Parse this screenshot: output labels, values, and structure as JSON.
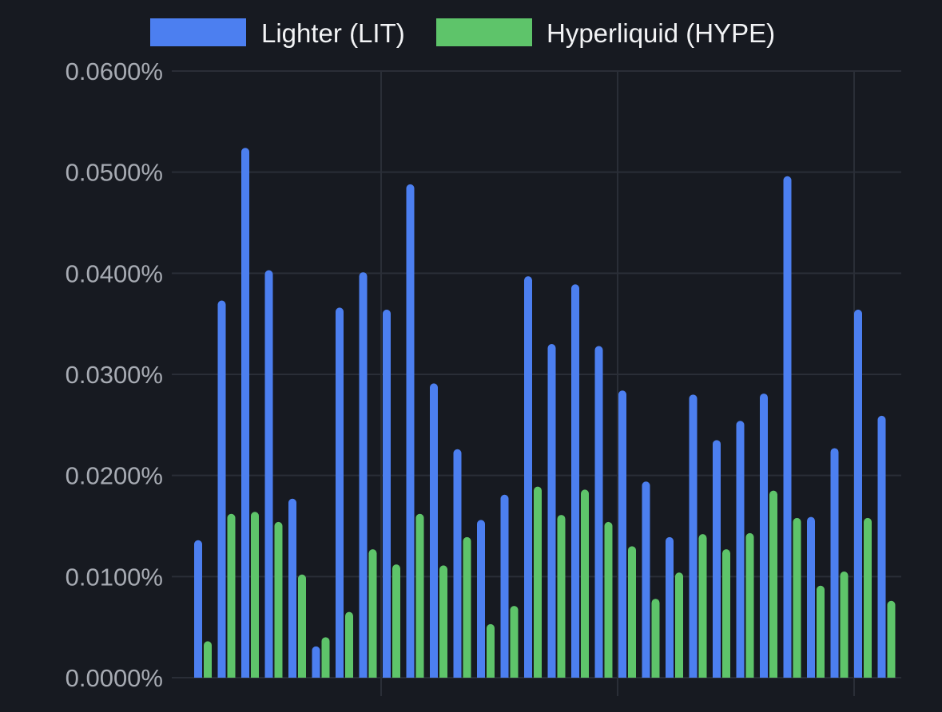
{
  "chart_data": {
    "type": "bar",
    "title": "",
    "xlabel": "",
    "ylabel": "",
    "ylim": [
      0,
      0.06
    ],
    "yticks": [
      "0.0000%",
      "0.0100%",
      "0.0200%",
      "0.0300%",
      "0.0400%",
      "0.0500%",
      "0.0600%"
    ],
    "ytick_values": [
      0,
      0.01,
      0.02,
      0.03,
      0.04,
      0.05,
      0.06
    ],
    "grid": true,
    "legend_position": "top-center",
    "colors": {
      "background": "#171a21",
      "grid": "#2a2e37",
      "lit": "#4c7ff0",
      "hype": "#5ec46a"
    },
    "series": [
      {
        "name": "Lighter (LIT)",
        "values": [
          0.0136,
          0.0373,
          0.0524,
          0.0403,
          0.0177,
          0.0031,
          0.0366,
          0.0401,
          0.0364,
          0.0488,
          0.0291,
          0.0226,
          0.0156,
          0.0181,
          0.0397,
          0.033,
          0.0389,
          0.0328,
          0.0284,
          0.0194,
          0.0139,
          0.028,
          0.0235,
          0.0254,
          0.0281,
          0.0496,
          0.0159,
          0.0227,
          0.0364,
          0.0259
        ]
      },
      {
        "name": "Hyperliquid (HYPE)",
        "values": [
          0.0036,
          0.0162,
          0.0164,
          0.0154,
          0.0102,
          0.004,
          0.0065,
          0.0127,
          0.0112,
          0.0162,
          0.0111,
          0.0139,
          0.0053,
          0.0071,
          0.0189,
          0.0161,
          0.0186,
          0.0154,
          0.013,
          0.0078,
          0.0104,
          0.0142,
          0.0127,
          0.0143,
          0.0185,
          0.0158,
          0.0091,
          0.0105,
          0.0158,
          0.0076
        ]
      }
    ]
  }
}
